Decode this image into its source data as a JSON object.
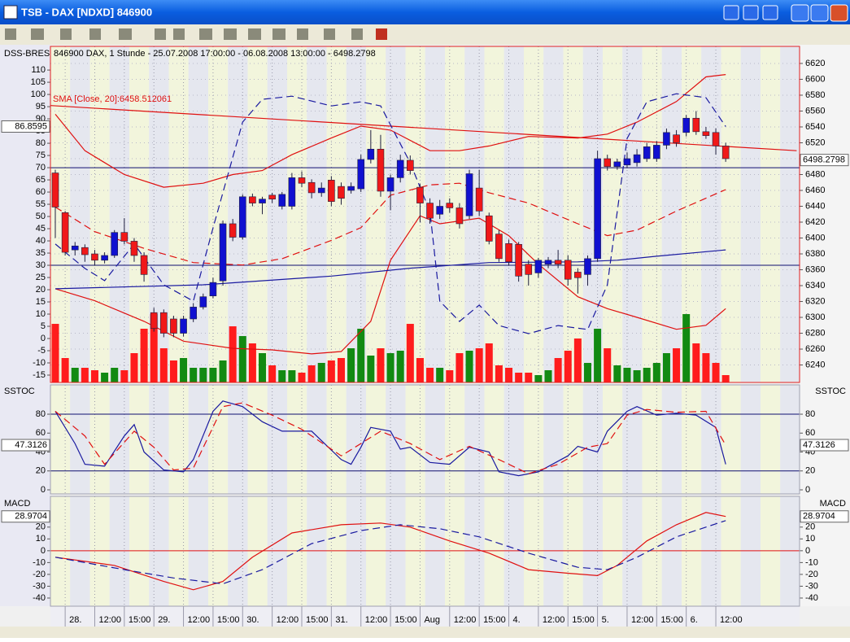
{
  "window": {
    "title": "TSB - DAX [NDXD] 846900"
  },
  "chart_data": [
    {
      "type": "candlestick",
      "header": "846900  DAX, 1 Stunde - 25.07.2008 17:00:00 - 06.08.2008 13:00:00 - 6498.2798",
      "sma_label": "SMA [Close, 20]:6458.512061",
      "indicator_label": "DSS-BRES",
      "categories": [
        null,
        "28.",
        null,
        null,
        "12:00",
        null,
        null,
        "15:00",
        null,
        null,
        "29.",
        null,
        null,
        "12:00",
        null,
        null,
        "15:00",
        null,
        null,
        "30.",
        null,
        null,
        "12:00",
        null,
        null,
        "15:00",
        null,
        null,
        "31.",
        null,
        null,
        "12:00",
        null,
        null,
        "15:00",
        null,
        null,
        "Aug",
        null,
        null,
        "12:00",
        null,
        null,
        "15:00",
        null,
        null,
        "4.",
        null,
        null,
        "12:00",
        null,
        null,
        "15:00",
        null,
        null,
        "5.",
        null,
        null,
        "12:00",
        null,
        null,
        "15:00",
        null,
        null,
        "6.",
        null,
        null,
        "12:00",
        null
      ],
      "open": [
        6482,
        6432,
        6385,
        6388,
        6380,
        6372,
        6378,
        6407,
        6396,
        6378,
        6306,
        6306,
        6298,
        6280,
        6298,
        6313,
        6327,
        6346,
        6418,
        6401,
        6452,
        6444,
        6454,
        6440,
        6440,
        6476,
        6470,
        6457,
        6473,
        6465,
        6460,
        6462,
        6499,
        6512,
        6459,
        6476,
        6498,
        6464,
        6444,
        6430,
        6444,
        6438,
        6428,
        6463,
        6428,
        6405,
        6393,
        6392,
        6367,
        6356,
        6367,
        6372,
        6372,
        6357,
        6354,
        6374,
        6500,
        6490,
        6492,
        6495,
        6500,
        6500,
        6517,
        6530,
        6533,
        6551,
        6534,
        6533,
        6516
      ],
      "high": [
        6486,
        6434,
        6395,
        6392,
        6385,
        6382,
        6410,
        6425,
        6400,
        6382,
        6312,
        6310,
        6302,
        6302,
        6318,
        6330,
        6350,
        6422,
        6424,
        6455,
        6456,
        6452,
        6457,
        6458,
        6482,
        6484,
        6474,
        6470,
        6478,
        6470,
        6470,
        6505,
        6536,
        6530,
        6480,
        6505,
        6504,
        6468,
        6450,
        6448,
        6450,
        6444,
        6486,
        6486,
        6432,
        6410,
        6398,
        6395,
        6372,
        6375,
        6376,
        6385,
        6378,
        6362,
        6378,
        6510,
        6505,
        6500,
        6508,
        6512,
        6520,
        6522,
        6538,
        6536,
        6555,
        6560,
        6540,
        6538,
        6520
      ],
      "low": [
        6400,
        6378,
        6378,
        6370,
        6365,
        6368,
        6375,
        6392,
        6370,
        6345,
        6282,
        6275,
        6275,
        6276,
        6294,
        6310,
        6324,
        6340,
        6396,
        6398,
        6440,
        6430,
        6444,
        6436,
        6436,
        6464,
        6450,
        6452,
        6440,
        6442,
        6456,
        6458,
        6494,
        6452,
        6435,
        6470,
        6480,
        6420,
        6418,
        6424,
        6432,
        6412,
        6424,
        6428,
        6392,
        6370,
        6365,
        6345,
        6340,
        6350,
        6362,
        6362,
        6340,
        6330,
        6340,
        6370,
        6485,
        6486,
        6488,
        6490,
        6496,
        6496,
        6512,
        6515,
        6528,
        6530,
        6525,
        6505,
        6496
      ],
      "close": [
        6439,
        6382,
        6390,
        6379,
        6372,
        6378,
        6407,
        6396,
        6378,
        6354,
        6286,
        6280,
        6280,
        6298,
        6313,
        6326,
        6344,
        6418,
        6401,
        6452,
        6444,
        6449,
        6449,
        6455,
        6476,
        6469,
        6457,
        6463,
        6446,
        6450,
        6465,
        6499,
        6512,
        6459,
        6476,
        6498,
        6485,
        6444,
        6425,
        6440,
        6438,
        6418,
        6481,
        6434,
        6396,
        6374,
        6370,
        6352,
        6354,
        6372,
        6372,
        6367,
        6348,
        6350,
        6374,
        6500,
        6490,
        6496,
        6500,
        6505,
        6515,
        6517,
        6533,
        6520,
        6551,
        6534,
        6529,
        6516,
        6500
      ],
      "up_color": "#1010d0",
      "down_color": "#f01818",
      "volume": [
        6,
        -8,
        -12,
        -12,
        -13,
        -14,
        -12,
        -13,
        -6,
        4,
        10,
        -4,
        -9,
        -8,
        -12,
        -12,
        -12,
        -9,
        5,
        1,
        -2,
        -6,
        -11,
        -13,
        -13,
        -14,
        -11,
        -10,
        -9,
        -8,
        -4,
        4,
        -7,
        -4,
        -6,
        -5,
        6,
        -8,
        -12,
        -12,
        -13,
        -6,
        -5,
        -4,
        -2,
        -11,
        -12,
        -14,
        -14,
        -15,
        -13,
        -8,
        -5,
        0,
        -10,
        4,
        -4,
        -11,
        -12,
        -13,
        -12,
        -10,
        -6,
        -4,
        10,
        -2,
        -6,
        -10,
        -15
      ],
      "volume_up_color": "#128a12",
      "volume_down_color": "#ff1c1c",
      "ylim": [
        6218,
        6641.5
      ],
      "yticks": [
        6240,
        6260,
        6280,
        6300,
        6320,
        6340,
        6360,
        6380,
        6400,
        6420,
        6440,
        6460,
        6480,
        6500,
        6520,
        6540,
        6560,
        6580,
        6600,
        6620
      ],
      "y2lim": [
        -18,
        119.7
      ],
      "y2ticks": [
        110,
        105,
        100,
        95,
        90,
        85,
        80,
        75,
        70,
        65,
        60,
        55,
        50,
        45,
        40,
        35,
        30,
        25,
        20,
        15,
        10,
        5,
        0,
        -5,
        -10,
        -15
      ],
      "grid": true,
      "last_value": 6498.2798,
      "dss_value": 86.8595,
      "hlines": {
        "axis": "y2",
        "color": "#101070",
        "values": [
          70,
          30
        ]
      },
      "series": [
        {
          "color": "#e01010",
          "dash": false,
          "x": [
            0,
            3,
            7,
            11,
            15,
            18,
            21,
            24,
            28,
            31,
            34,
            38,
            41,
            44,
            48,
            53,
            56,
            59,
            63,
            66,
            68
          ],
          "values": [
            6556,
            6510,
            6480,
            6464,
            6469,
            6480,
            6485,
            6505,
            6526,
            6541,
            6536,
            6510,
            6510,
            6516,
            6528,
            6526,
            6531,
            6546,
            6572,
            6603,
            6606
          ]
        },
        {
          "color": "#e01010",
          "dash": false,
          "x": [
            0,
            4,
            9,
            13,
            18,
            22,
            26,
            29,
            32,
            34,
            37,
            39,
            43,
            46,
            49,
            53,
            56,
            59,
            63,
            66,
            68
          ],
          "values": [
            6336,
            6321,
            6295,
            6270,
            6261,
            6259,
            6254,
            6257,
            6295,
            6372,
            6428,
            6418,
            6425,
            6403,
            6367,
            6326,
            6311,
            6300,
            6285,
            6290,
            6311
          ]
        },
        {
          "color": "#e01010",
          "dash": true,
          "x": [
            0,
            4,
            9,
            14,
            19,
            23,
            28,
            31,
            34,
            38,
            41,
            44,
            48,
            53,
            56,
            59,
            63,
            68
          ],
          "values": [
            6439,
            6408,
            6387,
            6369,
            6366,
            6374,
            6397,
            6413,
            6454,
            6467,
            6469,
            6457,
            6444,
            6418,
            6403,
            6410,
            6434,
            6461
          ]
        },
        {
          "color": "#1a1aa0",
          "dash": false,
          "x": [
            0,
            15,
            28,
            36,
            44,
            53,
            57,
            61,
            68
          ],
          "values": [
            6336,
            6341,
            6352,
            6362,
            6369,
            6370,
            6372,
            6377,
            6385
          ]
        },
        {
          "color": "#e01010",
          "dash": false,
          "x": [
            -0.5,
            75.2
          ],
          "values": [
            6567,
            6510
          ]
        },
        {
          "color": "#1a1aa0",
          "dash": true,
          "axis": "y2",
          "x": [
            0,
            3,
            5,
            8,
            11,
            14,
            16,
            19,
            21,
            24,
            28,
            31,
            33,
            36,
            38,
            39,
            41,
            43,
            45,
            48,
            51,
            54,
            56,
            58,
            60,
            63,
            66,
            68
          ],
          "values": [
            38.7,
            28.7,
            23.7,
            38.7,
            22,
            15.3,
            45.3,
            88.7,
            98,
            99.3,
            95.3,
            97,
            95.3,
            72,
            52,
            15.3,
            7,
            13.7,
            5.3,
            2,
            5.3,
            3.7,
            22,
            82,
            97,
            100.3,
            98.7,
            86.86
          ]
        }
      ]
    },
    {
      "type": "line",
      "name": "SSTOC",
      "ylim": [
        -4.3,
        111
      ],
      "yticks": [
        80,
        60,
        40,
        20,
        0
      ],
      "current_value": 47.3126,
      "hlines": {
        "color": "#101070",
        "values": [
          80,
          20
        ]
      },
      "series": [
        {
          "color": "#1a1aa0",
          "dash": false,
          "x": [
            0,
            2,
            3,
            5,
            7,
            8,
            9,
            11,
            13,
            14,
            16,
            17,
            19,
            21,
            23,
            26,
            29,
            30,
            31,
            32,
            34,
            35,
            36,
            38,
            40,
            42,
            44,
            45,
            47,
            49,
            52,
            53,
            55,
            56,
            58,
            59,
            61,
            63,
            65,
            67,
            68
          ],
          "values": [
            83,
            49,
            27,
            25,
            57,
            69,
            40,
            21,
            19,
            32,
            83,
            94,
            88,
            72,
            62,
            62,
            32,
            27,
            45,
            66,
            62,
            43,
            45,
            29,
            27,
            45,
            40,
            19,
            15,
            19,
            36,
            46,
            40,
            62,
            83,
            88,
            79,
            81,
            79,
            66,
            27
          ]
        },
        {
          "color": "#e01010",
          "dash": true,
          "x": [
            0,
            3,
            5,
            8,
            10,
            12,
            14,
            17,
            19,
            22,
            25,
            29,
            31,
            33,
            36,
            39,
            42,
            45,
            48,
            51,
            54,
            56,
            58,
            60,
            63,
            66,
            68
          ],
          "values": [
            83,
            57,
            27,
            62,
            45,
            21,
            23,
            88,
            92,
            79,
            64,
            36,
            49,
            62,
            49,
            32,
            46,
            32,
            17,
            27,
            45,
            49,
            79,
            85,
            82,
            83,
            47.3
          ]
        }
      ]
    },
    {
      "type": "line",
      "name": "MACD",
      "ylim": [
        -46.9,
        46
      ],
      "yticks": [
        20,
        10,
        0,
        -10,
        -20,
        -30,
        -40
      ],
      "current_value": 28.9704,
      "hlines": {
        "color": "#e01010",
        "values": [
          0
        ]
      },
      "series": [
        {
          "color": "#e01010",
          "dash": false,
          "x": [
            0,
            6,
            11,
            14,
            17,
            20,
            24,
            29,
            33,
            36,
            40,
            44,
            48,
            52,
            55,
            57,
            60,
            63,
            66,
            68
          ],
          "values": [
            -5.5,
            -12.4,
            -26,
            -33,
            -26,
            -5.5,
            15,
            22,
            23.4,
            20,
            8.3,
            -2,
            -16,
            -19,
            -21,
            -12.4,
            8.3,
            22,
            32.4,
            29
          ]
        },
        {
          "color": "#1a1aa0",
          "dash": true,
          "x": [
            0,
            7,
            12,
            17,
            21,
            26,
            31,
            35,
            39,
            43,
            48,
            53,
            56,
            59,
            63,
            66,
            68
          ],
          "values": [
            -5.5,
            -16,
            -23,
            -28,
            -16,
            6,
            17,
            22,
            18.6,
            11.7,
            -2,
            -14,
            -16,
            -5.5,
            11.7,
            20,
            25.5
          ]
        }
      ]
    }
  ]
}
